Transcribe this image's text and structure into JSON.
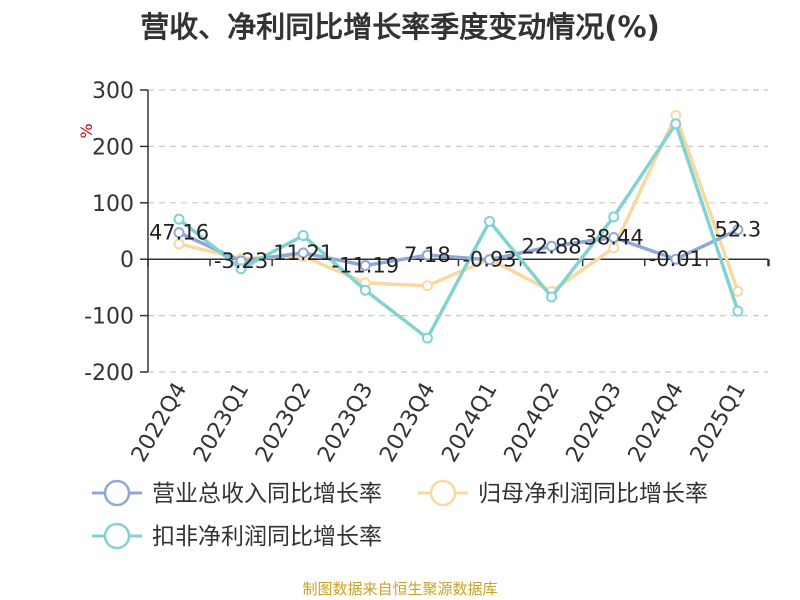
{
  "chart_data": {
    "type": "line",
    "title": "营收、净利同比增长率季度变动情况(%)",
    "ylabel": "%",
    "xlabel": "",
    "ylim": [
      -200,
      300
    ],
    "yticks": [
      -200,
      -100,
      0,
      100,
      200,
      300
    ],
    "grid": true,
    "legend_position": "bottom",
    "categories": [
      "2022Q4",
      "2023Q1",
      "2023Q2",
      "2023Q3",
      "2023Q4",
      "2024Q1",
      "2024Q2",
      "2024Q3",
      "2024Q4",
      "2025Q1"
    ],
    "series": [
      {
        "name": "营业总收入同比增长率",
        "color": "#8fa8d6",
        "values": [
          47.16,
          -3.23,
          11.21,
          -11.19,
          7.18,
          -0.93,
          22.88,
          38.44,
          -0.01,
          52.3
        ],
        "labels": [
          "47.16",
          "-3.23",
          "11.21",
          "-11.19",
          "7.18",
          "-0.93",
          "22.88",
          "38.44",
          "-0.01",
          "52.3"
        ]
      },
      {
        "name": "归母净利润同比增长率",
        "color": "#f8d9a0",
        "values": [
          27,
          1,
          5,
          -42,
          -47,
          0,
          -57,
          20,
          255,
          -57
        ]
      },
      {
        "name": "扣非净利润同比增长率",
        "color": "#82d2d2",
        "values": [
          71,
          -17,
          42,
          -55,
          -140,
          67,
          -67,
          75,
          240,
          -92
        ]
      }
    ],
    "source": "制图数据来自恒生聚源数据库"
  }
}
